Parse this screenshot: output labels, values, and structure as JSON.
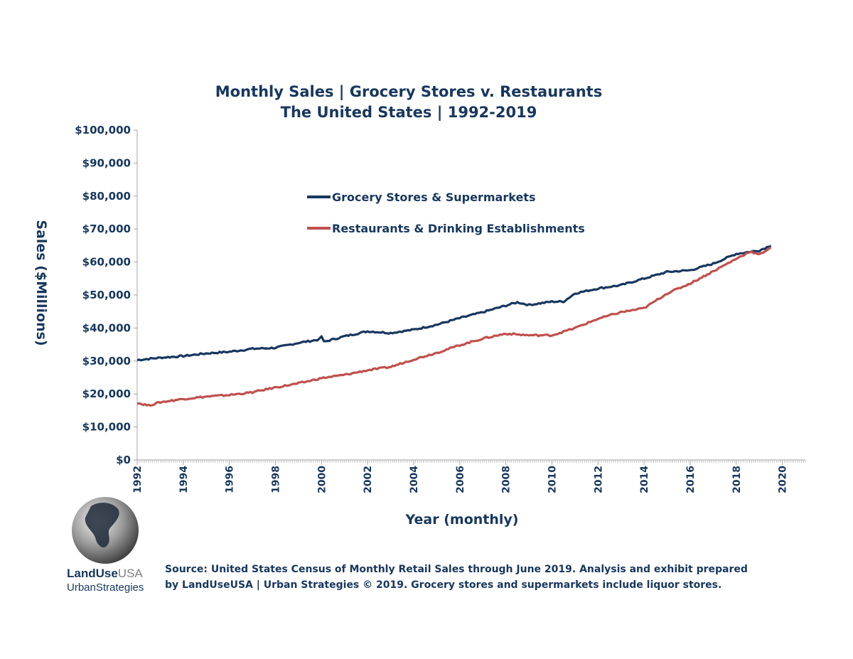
{
  "chart_data": {
    "type": "line",
    "title": "Monthly Sales | Grocery Stores v. Restaurants",
    "subtitle": "The United States | 1992-2019",
    "xlabel": "Year (monthly)",
    "ylabel": "Sales ($Millions)",
    "xlim": [
      1992,
      2021
    ],
    "ylim": [
      0,
      100000
    ],
    "x_ticks": [
      "1992",
      "1994",
      "1996",
      "1998",
      "2000",
      "2002",
      "2004",
      "2006",
      "2008",
      "2010",
      "2012",
      "2014",
      "2016",
      "2018",
      "2020"
    ],
    "y_ticks": [
      "$0",
      "$10,000",
      "$20,000",
      "$30,000",
      "$40,000",
      "$50,000",
      "$60,000",
      "$70,000",
      "$80,000",
      "$90,000",
      "$100,000"
    ],
    "legend": "upper-middle",
    "grid": false,
    "series": [
      {
        "name": "Grocery Stores & Supermarkets",
        "color": "#17375e",
        "x": [
          1992,
          1993,
          1994,
          1995,
          1996,
          1997,
          1998,
          1999,
          1999.9,
          2000,
          2000.1,
          2001,
          2002,
          2003,
          2004,
          2005,
          2006,
          2007,
          2008,
          2008.5,
          2009,
          2010,
          2010.5,
          2011,
          2012,
          2013,
          2014,
          2015,
          2016,
          2017,
          2018,
          2019,
          2019.5
        ],
        "values": [
          30300,
          31000,
          31500,
          32300,
          32800,
          33700,
          34000,
          35500,
          36500,
          37500,
          35800,
          37500,
          39000,
          38500,
          39500,
          41000,
          43000,
          44800,
          46800,
          47800,
          47000,
          48000,
          48000,
          50500,
          52000,
          53000,
          55000,
          57000,
          57500,
          59500,
          62500,
          63500,
          65000
        ]
      },
      {
        "name": "Restaurants & Drinking Establishments",
        "color": "#c0504d",
        "x": [
          1992,
          1992.5,
          1993,
          1994,
          1995,
          1996,
          1997,
          1998,
          1999,
          2000,
          2001,
          2002,
          2003,
          2004,
          2005,
          2006,
          2007,
          2008,
          2009,
          2010,
          2011,
          2012,
          2013,
          2014,
          2015,
          2016,
          2017,
          2018,
          2018.6,
          2019,
          2019.5
        ],
        "values": [
          17300,
          16500,
          17500,
          18500,
          19200,
          19700,
          20500,
          22000,
          23200,
          24800,
          25800,
          27200,
          28200,
          30500,
          32500,
          34800,
          36800,
          38300,
          37800,
          37800,
          40000,
          42800,
          44800,
          46000,
          50500,
          53500,
          57200,
          61000,
          63200,
          62200,
          64500
        ]
      }
    ]
  },
  "logo": {
    "name_bold": "LandUse",
    "name_light": "USA",
    "tagline": "UrbanStrategies"
  },
  "source_note": "Source: United States Census of Monthly Retail Sales through June 2019. Analysis and exhibit prepared by LandUseUSA | Urban Strategies © 2019. Grocery stores and supermarkets include liquor stores."
}
